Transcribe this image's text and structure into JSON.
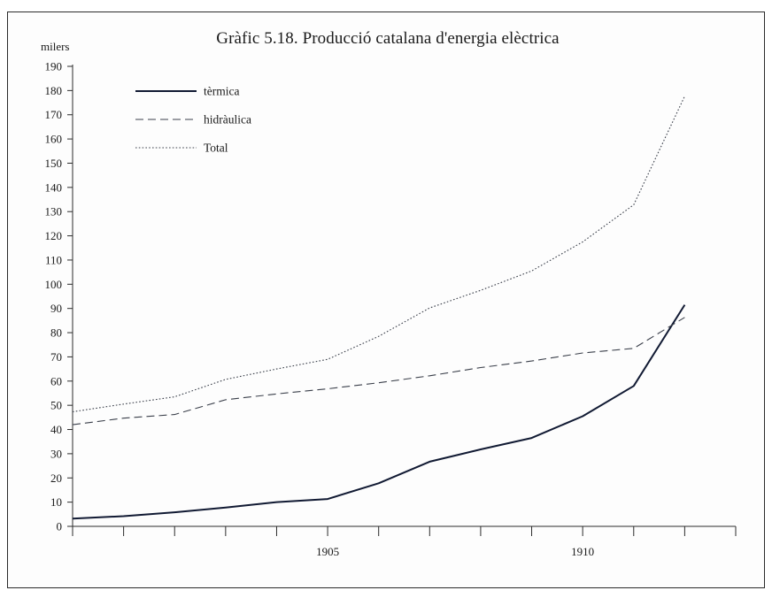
{
  "chart_data": {
    "type": "line",
    "title": "Gràfic 5.18. Producció catalana d'energia elèctrica",
    "ylabel": "milers",
    "xlabel": "",
    "x": [
      1900,
      1901,
      1902,
      1903,
      1904,
      1905,
      1906,
      1907,
      1908,
      1909,
      1910,
      1911,
      1912,
      1913
    ],
    "xlim": [
      1900,
      1913
    ],
    "ylim": [
      0,
      190
    ],
    "yticks": [
      0,
      10,
      20,
      30,
      40,
      50,
      60,
      70,
      80,
      90,
      100,
      110,
      120,
      130,
      140,
      150,
      160,
      170,
      180,
      190
    ],
    "xtick_labels": [
      {
        "x": 1905,
        "label": "1905"
      },
      {
        "x": 1910,
        "label": "1910"
      }
    ],
    "grid": false,
    "legend_position": "top-left",
    "series": [
      {
        "name": "tèrmica",
        "style": "solid",
        "color": "#111a33",
        "values": [
          3.2,
          4.2,
          5.8,
          7.8,
          10.0,
          11.3,
          17.8,
          26.7,
          31.8,
          36.5,
          45.5,
          58.0,
          91.5,
          null
        ]
      },
      {
        "name": "hidràulica",
        "style": "dashed",
        "color": "#3a3f4a",
        "values": [
          42.0,
          44.7,
          46.2,
          52.3,
          54.7,
          56.8,
          59.3,
          62.2,
          65.6,
          68.3,
          71.6,
          73.5,
          86.3,
          null
        ]
      },
      {
        "name": "Total",
        "style": "dotted",
        "color": "#3a3f4a",
        "values": [
          47.3,
          50.5,
          53.5,
          60.7,
          65.0,
          69.0,
          78.5,
          90.2,
          97.5,
          105.5,
          117.5,
          132.8,
          177.7,
          null
        ]
      }
    ]
  }
}
